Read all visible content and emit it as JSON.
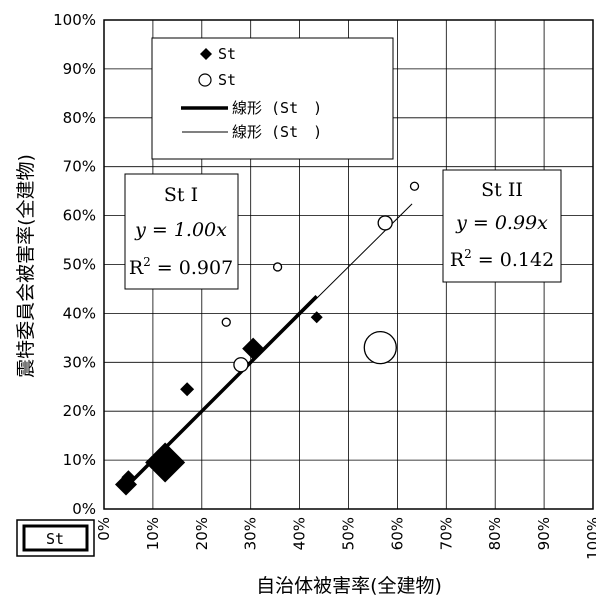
{
  "chart_data": {
    "type": "scatter",
    "title": "",
    "xlabel": "自治体被害率(全建物)",
    "ylabel": "震特委員会被害率(全建物)",
    "xlim": [
      0,
      100
    ],
    "ylim": [
      0,
      100
    ],
    "x_ticks": [
      "0%",
      "10%",
      "20%",
      "30%",
      "40%",
      "50%",
      "60%",
      "70%",
      "80%",
      "90%",
      "100%"
    ],
    "y_ticks": [
      "0%",
      "10%",
      "20%",
      "30%",
      "40%",
      "50%",
      "60%",
      "70%",
      "80%",
      "90%",
      "100%"
    ],
    "grid": true,
    "legend_position": "top-center",
    "corner_label": "St",
    "series": [
      {
        "name": "St",
        "marker": "diamond-filled",
        "color": "#000000",
        "points": [
          {
            "x": 4.5,
            "y": 5.0,
            "size": 11
          },
          {
            "x": 5.0,
            "y": 6.5,
            "size": 7
          },
          {
            "x": 12.5,
            "y": 9.5,
            "size": 20
          },
          {
            "x": 17.0,
            "y": 24.5,
            "size": 7
          },
          {
            "x": 30.5,
            "y": 32.8,
            "size": 11
          },
          {
            "x": 43.5,
            "y": 39.2,
            "size": 6
          }
        ]
      },
      {
        "name": "St",
        "marker": "circle-open",
        "color": "#000000",
        "points": [
          {
            "x": 25.0,
            "y": 38.2,
            "size": 4
          },
          {
            "x": 28.0,
            "y": 29.5,
            "size": 7
          },
          {
            "x": 35.5,
            "y": 49.5,
            "size": 4
          },
          {
            "x": 56.5,
            "y": 33.0,
            "size": 16
          },
          {
            "x": 57.5,
            "y": 58.5,
            "size": 7
          },
          {
            "x": 63.5,
            "y": 66.0,
            "size": 4
          }
        ]
      },
      {
        "name": "線形 (St )",
        "type": "line",
        "color": "#000000",
        "stroke": "thick",
        "x": [
          4.0,
          43.5
        ],
        "y": [
          4.0,
          43.5
        ]
      },
      {
        "name": "線形 (St )",
        "type": "line",
        "color": "#000000",
        "stroke": "thin",
        "x": [
          10.0,
          63.0
        ],
        "y": [
          9.9,
          62.4
        ]
      }
    ],
    "legend": [
      "St",
      "St",
      "線形 (St　)",
      "線形 (St　)"
    ],
    "annotations": [
      {
        "title": "St I",
        "equation": "y = 1.00x",
        "r2_label": "R",
        "r2_sup": "2",
        "r2_value": " = 0.907"
      },
      {
        "title": "St II",
        "equation": "y = 0.99x",
        "r2_label": "R",
        "r2_sup": "2",
        "r2_value": " = 0.142"
      }
    ]
  }
}
